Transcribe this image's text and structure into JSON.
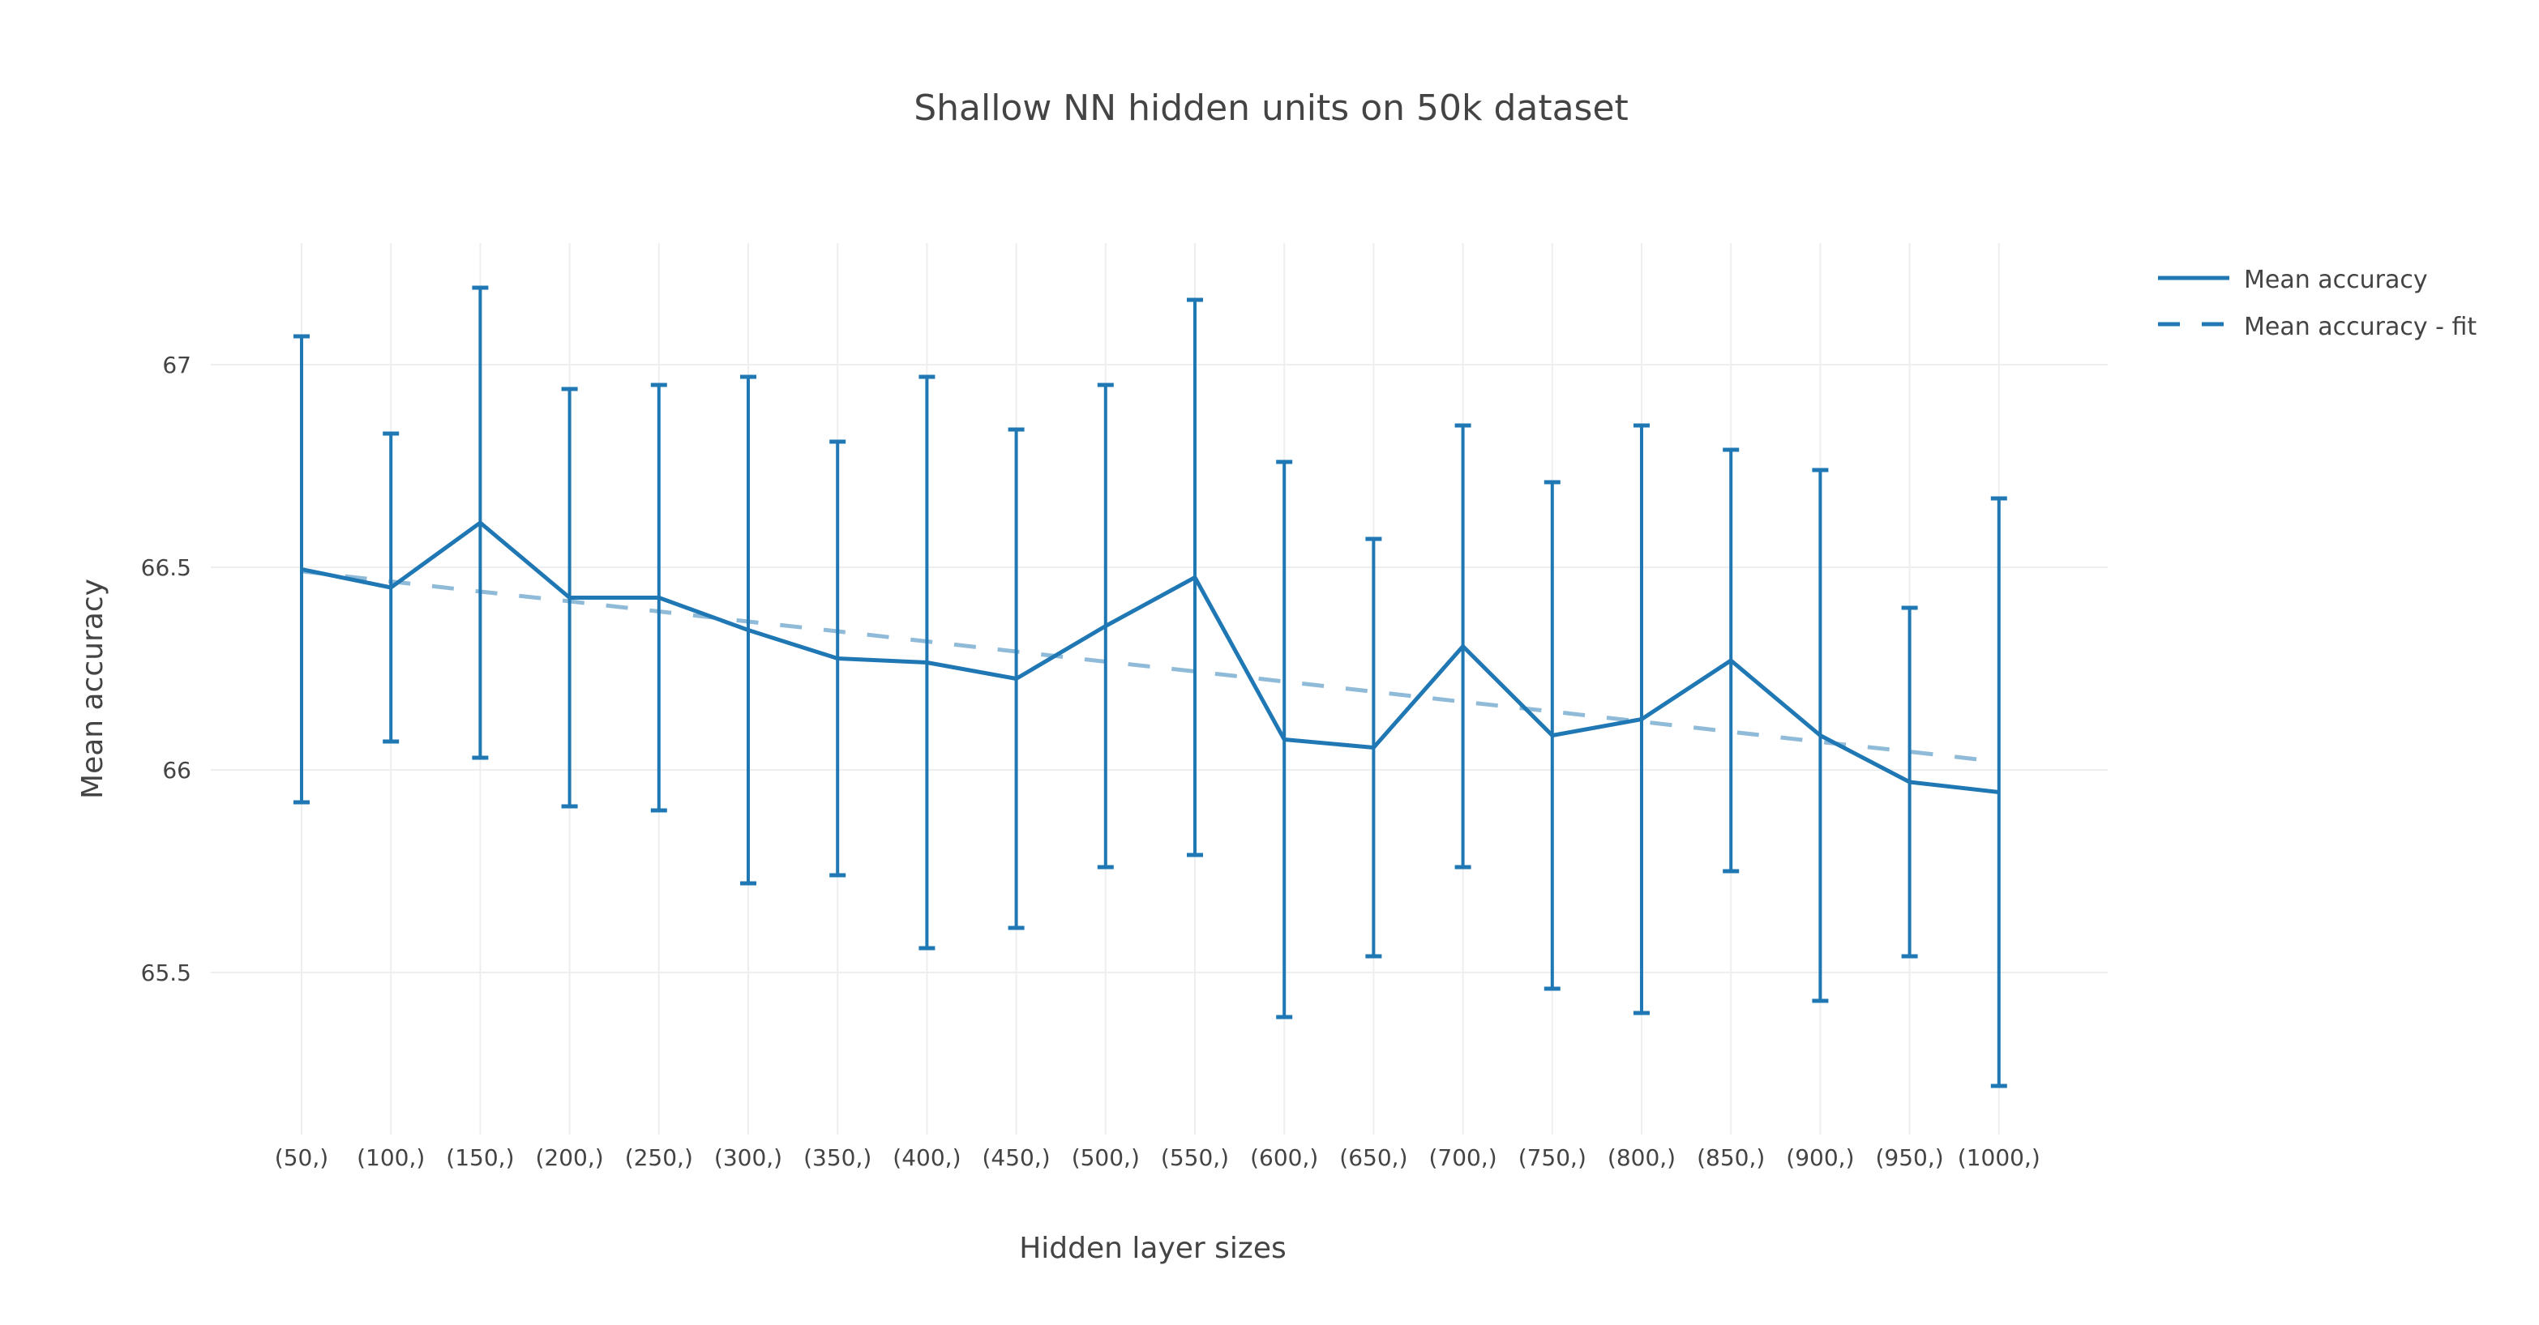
{
  "chart_data": {
    "type": "line",
    "title": "Shallow NN hidden units on 50k dataset",
    "xlabel": "Hidden layer sizes",
    "ylabel": "Mean accuracy",
    "categories": [
      "(50,)",
      "(100,)",
      "(150,)",
      "(200,)",
      "(250,)",
      "(300,)",
      "(350,)",
      "(400,)",
      "(450,)",
      "(500,)",
      "(550,)",
      "(600,)",
      "(650,)",
      "(700,)",
      "(750,)",
      "(800,)",
      "(850,)",
      "(900,)",
      "(950,)",
      "(1000,)"
    ],
    "yticks": [
      65.5,
      66,
      66.5,
      67
    ],
    "ytick_labels": [
      "65.5",
      "66",
      "66.5",
      "67"
    ],
    "ylim": [
      65.1,
      67.3
    ],
    "grid": true,
    "legend_position": "top-right",
    "series": [
      {
        "name": "Mean accuracy",
        "style": "solid",
        "color": "#1f77b4",
        "values": [
          66.495,
          66.45,
          66.61,
          66.425,
          66.425,
          66.345,
          66.275,
          66.265,
          66.225,
          66.355,
          66.475,
          66.075,
          66.055,
          66.305,
          66.085,
          66.125,
          66.27,
          66.085,
          65.97,
          65.945
        ],
        "error": [
          0.575,
          0.38,
          0.58,
          0.515,
          0.525,
          0.625,
          0.535,
          0.705,
          0.615,
          0.595,
          0.685,
          0.685,
          0.515,
          0.545,
          0.625,
          0.725,
          0.52,
          0.655,
          0.43,
          0.725
        ]
      },
      {
        "name": "Mean accuracy - fit",
        "style": "dash",
        "color": "#1f77b4",
        "opacity": 0.5,
        "values": [
          66.49,
          66.465,
          66.44,
          66.416,
          66.391,
          66.366,
          66.342,
          66.317,
          66.292,
          66.267,
          66.243,
          66.218,
          66.193,
          66.168,
          66.144,
          66.119,
          66.094,
          66.069,
          66.045,
          66.02
        ]
      }
    ]
  }
}
